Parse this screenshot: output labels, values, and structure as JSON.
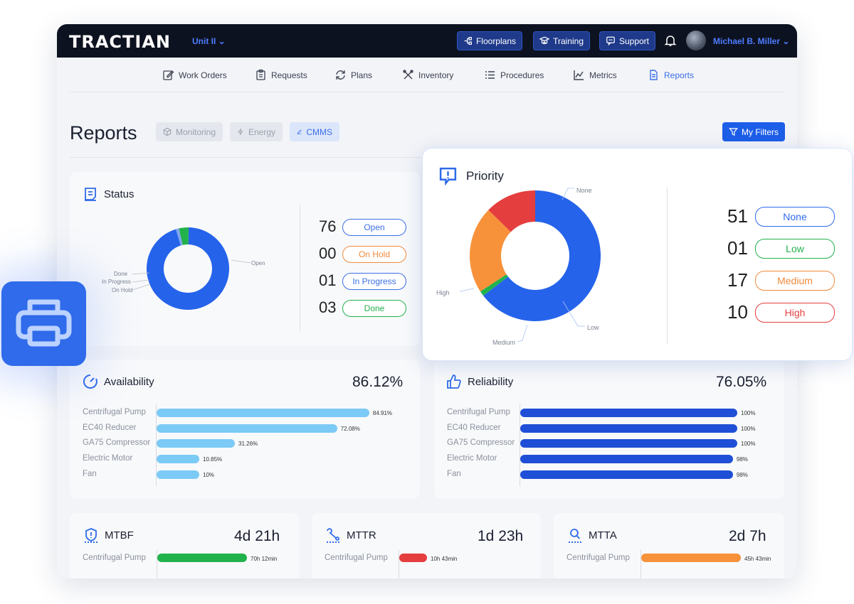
{
  "brand": {
    "logo": "TRACTIAN",
    "unit": "Unit II ⌄"
  },
  "topbar": {
    "floorplans": "Floorplans",
    "training": "Training",
    "support": "Support",
    "user_name": "Michael B. Miller ⌄"
  },
  "nav": {
    "items": [
      "Work Orders",
      "Requests",
      "Plans",
      "Inventory",
      "Procedures",
      "Metrics",
      "Reports"
    ],
    "active": "Reports"
  },
  "page": {
    "title": "Reports",
    "filters": [
      "Monitoring",
      "Energy",
      "CMMS"
    ],
    "active_filter": "CMMS",
    "my_filters": "My Filters"
  },
  "status": {
    "title": "Status",
    "chart_labels": {
      "open": "Open",
      "done": "Done",
      "in_progress": "In Progress",
      "on_hold": "On Hold"
    },
    "rows": [
      {
        "count": "76",
        "label": "Open",
        "color": "#3b6fe5"
      },
      {
        "count": "00",
        "label": "On Hold",
        "color": "#f08a3c"
      },
      {
        "count": "01",
        "label": "In Progress",
        "color": "#3b6fe5"
      },
      {
        "count": "03",
        "label": "Done",
        "color": "#22b24c"
      }
    ],
    "slices": [
      {
        "label": "Open",
        "value": 76,
        "color": "#2563eb"
      },
      {
        "label": "On Hold",
        "value": 0,
        "color": "#f08a3c"
      },
      {
        "label": "In Progress",
        "value": 1,
        "color": "#7ea6f0"
      },
      {
        "label": "Done",
        "value": 3,
        "color": "#22b24c"
      }
    ]
  },
  "priority": {
    "title": "Priority",
    "chart_labels": {
      "none": "None",
      "high": "High",
      "medium": "Medium",
      "low": "Low"
    },
    "rows": [
      {
        "count": "51",
        "label": "None",
        "color": "#2f6bea"
      },
      {
        "count": "01",
        "label": "Low",
        "color": "#22b24c"
      },
      {
        "count": "17",
        "label": "Medium",
        "color": "#f08a3c"
      },
      {
        "count": "10",
        "label": "High",
        "color": "#e53e3e"
      }
    ],
    "slices": [
      {
        "label": "None",
        "value": 51,
        "color": "#2563eb"
      },
      {
        "label": "Low",
        "value": 1,
        "color": "#22b24c"
      },
      {
        "label": "Medium",
        "value": 17,
        "color": "#f7923a"
      },
      {
        "label": "High",
        "value": 10,
        "color": "#e53e3e"
      }
    ]
  },
  "availability": {
    "title": "Availability",
    "value": "86.12%",
    "color": "#7ccaf6",
    "bars": [
      {
        "label": "Centrifugal Pump",
        "value": 84.91,
        "text": "84.91%"
      },
      {
        "label": "EC40 Reducer",
        "value": 72.08,
        "text": "72.08%"
      },
      {
        "label": "GA75 Compressor",
        "value": 31.26,
        "text": "31.26%"
      },
      {
        "label": "Electric Motor",
        "value": 10.85,
        "text": "10.85%"
      },
      {
        "label": "Fan",
        "value": 10,
        "text": "10%"
      }
    ]
  },
  "reliability": {
    "title": "Reliability",
    "value": "76.05%",
    "color": "#1f4fd6",
    "bars": [
      {
        "label": "Centrifugal Pump",
        "value": 100,
        "text": "100%"
      },
      {
        "label": "EC40 Reducer",
        "value": 100,
        "text": "100%"
      },
      {
        "label": "GA75 Compressor",
        "value": 100,
        "text": "100%"
      },
      {
        "label": "Electric Motor",
        "value": 98,
        "text": "98%"
      },
      {
        "label": "Fan",
        "value": 98,
        "text": "98%"
      }
    ]
  },
  "mtbf": {
    "title": "MTBF",
    "value": "4d 21h",
    "bar_label": "Centrifugal Pump",
    "bar_text": "70h 12min",
    "color": "#22b24c",
    "bar_fraction": 0.72
  },
  "mttr": {
    "title": "MTTR",
    "value": "1d 23h",
    "bar_label": "Centrifugal Pump",
    "bar_text": "10h 43min",
    "color": "#e53e3e",
    "bar_fraction": 0.22
  },
  "mtta": {
    "title": "MTTA",
    "value": "2d 7h",
    "bar_label": "Centrifugal Pump",
    "bar_text": "45h 43min",
    "color": "#f7923a",
    "bar_fraction": 0.8
  },
  "icons": {
    "floorplans": "floorplans-icon",
    "training": "training-icon",
    "support": "support-icon",
    "bell": "bell-icon",
    "printer": "printer-icon",
    "filter": "filter-icon"
  }
}
